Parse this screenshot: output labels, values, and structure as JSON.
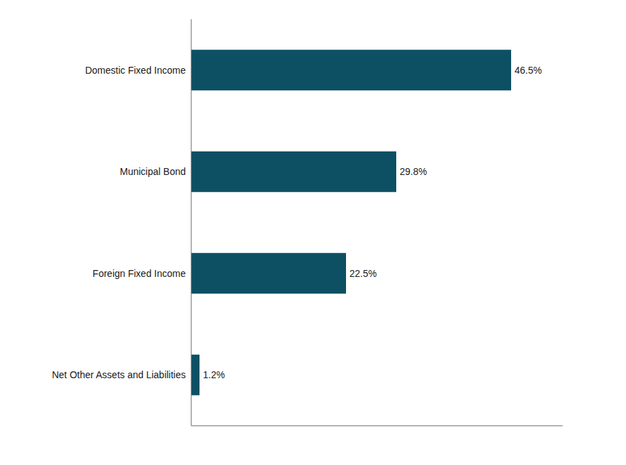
{
  "chart_data": {
    "type": "bar",
    "orientation": "horizontal",
    "categories": [
      "Net Other Assets and Liabilities",
      "Foreign Fixed Income",
      "Municipal Bond",
      "Domestic Fixed Income"
    ],
    "values": [
      1.2,
      22.5,
      29.8,
      46.5
    ],
    "value_labels": [
      "1.2%",
      "22.5%",
      "29.8%",
      "46.5%"
    ],
    "data_labels": true,
    "color": "#0d4f63",
    "xlim": [
      0,
      54
    ],
    "grid": false,
    "tick_labels": "y"
  }
}
